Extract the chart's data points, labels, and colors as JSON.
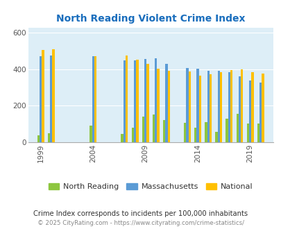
{
  "title": "North Reading Violent Crime Index",
  "title_color": "#1a6ebd",
  "years": [
    1999,
    2000,
    2004,
    2007,
    2008,
    2009,
    2010,
    2011,
    2013,
    2014,
    2015,
    2016,
    2017,
    2018,
    2019,
    2020
  ],
  "north_reading": [
    38,
    48,
    90,
    45,
    80,
    140,
    150,
    120,
    105,
    80,
    110,
    55,
    128,
    155,
    102,
    103
  ],
  "massachusetts": [
    472,
    475,
    472,
    450,
    450,
    455,
    460,
    430,
    407,
    405,
    392,
    390,
    385,
    360,
    337,
    325
  ],
  "national": [
    508,
    510,
    472,
    475,
    452,
    430,
    405,
    390,
    387,
    365,
    372,
    385,
    395,
    400,
    383,
    378
  ],
  "bar_colors": {
    "north_reading": "#8dc63f",
    "massachusetts": "#5b9bd5",
    "national": "#ffc000"
  },
  "bg_color": "#ddeef7",
  "fig_bg": "#ffffff",
  "yticks": [
    0,
    200,
    400,
    600
  ],
  "ylim": [
    0,
    630
  ],
  "footnote": "Crime Index corresponds to incidents per 100,000 inhabitants",
  "copyright": "© 2025 CityRating.com - https://www.cityrating.com/crime-statistics/",
  "legend_labels": [
    "North Reading",
    "Massachusetts",
    "National"
  ],
  "xtick_years": [
    1999,
    2004,
    2009,
    2014,
    2019
  ]
}
